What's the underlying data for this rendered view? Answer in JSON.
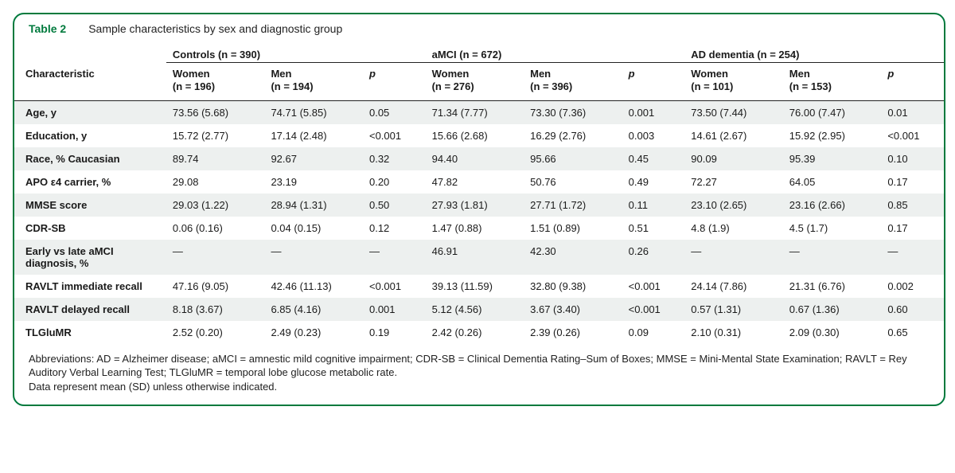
{
  "title": {
    "label": "Table 2",
    "desc": "Sample characteristics by sex and diagnostic group"
  },
  "colors": {
    "accent": "#007a3d",
    "stripe": "#edf0ef",
    "rule": "#222222"
  },
  "groups": [
    {
      "label": "Controls (n = 390)",
      "women": "Women\n(n = 196)",
      "men": "Men\n(n = 194)"
    },
    {
      "label": "aMCI (n = 672)",
      "women": "Women\n(n = 276)",
      "men": "Men\n(n = 396)"
    },
    {
      "label": "AD dementia (n = 254)",
      "women": "Women\n(n = 101)",
      "men": "Men\n(n = 153)"
    }
  ],
  "char_header": "Characteristic",
  "p_header": "p",
  "rows": [
    {
      "label": "Age, y",
      "g": [
        [
          "73.56 (5.68)",
          "74.71 (5.85)",
          "0.05"
        ],
        [
          "71.34 (7.77)",
          "73.30 (7.36)",
          "0.001"
        ],
        [
          "73.50 (7.44)",
          "76.00 (7.47)",
          "0.01"
        ]
      ]
    },
    {
      "label": "Education, y",
      "g": [
        [
          "15.72 (2.77)",
          "17.14 (2.48)",
          "<0.001"
        ],
        [
          "15.66 (2.68)",
          "16.29 (2.76)",
          "0.003"
        ],
        [
          "14.61 (2.67)",
          "15.92 (2.95)",
          "<0.001"
        ]
      ]
    },
    {
      "label": "Race, % Caucasian",
      "g": [
        [
          "89.74",
          "92.67",
          "0.32"
        ],
        [
          "94.40",
          "95.66",
          "0.45"
        ],
        [
          "90.09",
          "95.39",
          "0.10"
        ]
      ]
    },
    {
      "label": "APO ε4 carrier, %",
      "g": [
        [
          "29.08",
          "23.19",
          "0.20"
        ],
        [
          "47.82",
          "50.76",
          "0.49"
        ],
        [
          "72.27",
          "64.05",
          "0.17"
        ]
      ]
    },
    {
      "label": "MMSE score",
      "g": [
        [
          "29.03 (1.22)",
          "28.94 (1.31)",
          "0.50"
        ],
        [
          "27.93 (1.81)",
          "27.71 (1.72)",
          "0.11"
        ],
        [
          "23.10 (2.65)",
          "23.16 (2.66)",
          "0.85"
        ]
      ]
    },
    {
      "label": "CDR-SB",
      "g": [
        [
          "0.06 (0.16)",
          "0.04 (0.15)",
          "0.12"
        ],
        [
          "1.47 (0.88)",
          "1.51 (0.89)",
          "0.51"
        ],
        [
          "4.8 (1.9)",
          "4.5 (1.7)",
          "0.17"
        ]
      ]
    },
    {
      "label": "Early vs late aMCI diagnosis, %",
      "g": [
        [
          "—",
          "—",
          "—"
        ],
        [
          "46.91",
          "42.30",
          "0.26"
        ],
        [
          "—",
          "—",
          "—"
        ]
      ]
    },
    {
      "label": "RAVLT immediate recall",
      "g": [
        [
          "47.16 (9.05)",
          "42.46 (11.13)",
          "<0.001"
        ],
        [
          "39.13 (11.59)",
          "32.80 (9.38)",
          "<0.001"
        ],
        [
          "24.14 (7.86)",
          "21.31 (6.76)",
          "0.002"
        ]
      ]
    },
    {
      "label": "RAVLT delayed recall",
      "g": [
        [
          "8.18 (3.67)",
          "6.85 (4.16)",
          "0.001"
        ],
        [
          "5.12 (4.56)",
          "3.67 (3.40)",
          "<0.001"
        ],
        [
          "0.57 (1.31)",
          "0.67 (1.36)",
          "0.60"
        ]
      ]
    },
    {
      "label": "TLGluMR",
      "g": [
        [
          "2.52 (0.20)",
          "2.49 (0.23)",
          "0.19"
        ],
        [
          "2.42 (0.26)",
          "2.39 (0.26)",
          "0.09"
        ],
        [
          "2.10 (0.31)",
          "2.09 (0.30)",
          "0.65"
        ]
      ]
    }
  ],
  "footnote": "Abbreviations: AD = Alzheimer disease; aMCI = amnestic mild cognitive impairment; CDR-SB = Clinical Dementia Rating–Sum of Boxes; MMSE = Mini-Mental State Examination; RAVLT = Rey Auditory Verbal Learning Test; TLGluMR = temporal lobe glucose metabolic rate.\nData represent mean (SD) unless otherwise indicated."
}
